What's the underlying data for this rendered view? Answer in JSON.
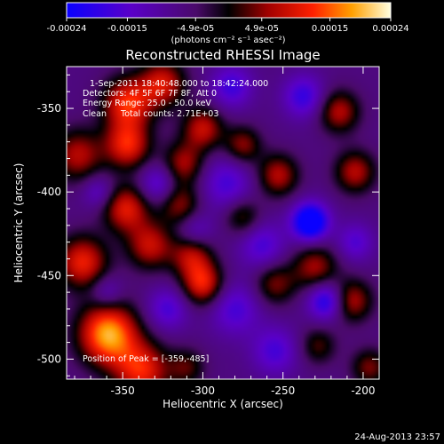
{
  "chart_data": {
    "type": "heatmap",
    "title": "Reconstructed RHESSI Image",
    "xlabel": "Heliocentric X (arcsec)",
    "ylabel": "Heliocentric Y (arcsec)",
    "xlim": [
      -385,
      -190
    ],
    "ylim": [
      -512,
      -325
    ],
    "x_ticks": [
      -350,
      -300,
      -250,
      -200
    ],
    "y_ticks": [
      -350,
      -400,
      -450,
      -500
    ],
    "colorbar": {
      "range": [
        -0.00024,
        0.00024
      ],
      "tick_values": [
        -0.00024,
        -0.00015,
        -4.9e-05,
        4.9e-05,
        0.00015,
        0.00024
      ],
      "tick_labels": [
        "-0.00024",
        "-0.00015",
        "-4.9e-05",
        "4.9e-05",
        "0.00015",
        "0.00024"
      ],
      "units_label": "(photons cm⁻² s⁻¹ asec⁻²)"
    },
    "annotations": {
      "time_range": "1-Sep-2011 18:40:48.000 to 18:42:24.000",
      "detectors": "Detectors: 4F 5F 6F 7F 8F, Att 0",
      "energy_range": "Energy Range: 25.0 - 50.0 keV",
      "clean": "Clean",
      "total_counts": "Total counts: 2.71E+03",
      "peak": "Position of Peak = [-359,-485]"
    },
    "peak": {
      "x": -359,
      "y": -485,
      "value": 0.00024
    },
    "minimum": {
      "x": -233,
      "y": -418,
      "value": -0.00024
    },
    "sources": [
      {
        "x": -359,
        "y": -485,
        "value": 0.00024,
        "width": 13
      },
      {
        "x": -338,
        "y": -507,
        "value": 0.00016,
        "width": 12
      },
      {
        "x": -375,
        "y": -442,
        "value": 0.00016,
        "width": 11
      },
      {
        "x": -348,
        "y": -410,
        "value": 0.00015,
        "width": 10
      },
      {
        "x": -333,
        "y": -432,
        "value": 0.00013,
        "width": 10
      },
      {
        "x": -378,
        "y": -378,
        "value": 0.00012,
        "width": 11
      },
      {
        "x": -347,
        "y": -347,
        "value": 0.00017,
        "width": 11
      },
      {
        "x": -347,
        "y": -372,
        "value": 0.00016,
        "width": 10
      },
      {
        "x": -325,
        "y": -335,
        "value": 0.00014,
        "width": 10
      },
      {
        "x": -300,
        "y": -455,
        "value": 0.00016,
        "width": 9
      },
      {
        "x": -307,
        "y": -438,
        "value": 0.00012,
        "width": 9
      },
      {
        "x": -314,
        "y": -408,
        "value": 0.0001,
        "width": 9
      },
      {
        "x": -312,
        "y": -383,
        "value": 0.00011,
        "width": 9
      },
      {
        "x": -300,
        "y": -362,
        "value": 0.00013,
        "width": 9
      },
      {
        "x": -253,
        "y": -390,
        "value": 0.00012,
        "width": 9
      },
      {
        "x": -275,
        "y": -372,
        "value": 0.0001,
        "width": 8
      },
      {
        "x": -215,
        "y": -352,
        "value": 0.00012,
        "width": 9
      },
      {
        "x": -205,
        "y": -388,
        "value": 0.00012,
        "width": 9
      },
      {
        "x": -230,
        "y": -445,
        "value": 0.00011,
        "width": 10
      },
      {
        "x": -207,
        "y": -465,
        "value": 0.00012,
        "width": 9
      },
      {
        "x": -255,
        "y": -455,
        "value": 9e-05,
        "width": 9
      },
      {
        "x": -275,
        "y": -415,
        "value": 8e-05,
        "width": 8
      },
      {
        "x": -196,
        "y": -505,
        "value": 9e-05,
        "width": 8
      },
      {
        "x": -228,
        "y": -492,
        "value": 7e-05,
        "width": 8
      },
      {
        "x": -310,
        "y": -505,
        "value": 7e-05,
        "width": 8
      },
      {
        "x": -233,
        "y": -418,
        "value": -0.00024,
        "width": 8
      },
      {
        "x": -237,
        "y": -343,
        "value": -0.00012,
        "width": 9
      },
      {
        "x": -223,
        "y": -465,
        "value": -0.00016,
        "width": 8
      },
      {
        "x": -285,
        "y": -395,
        "value": -0.0001,
        "width": 11
      },
      {
        "x": -263,
        "y": -432,
        "value": -0.0001,
        "width": 10
      },
      {
        "x": -280,
        "y": -470,
        "value": -0.0001,
        "width": 11
      },
      {
        "x": -282,
        "y": -337,
        "value": -0.00011,
        "width": 9
      },
      {
        "x": -322,
        "y": -470,
        "value": -0.0001,
        "width": 9
      },
      {
        "x": -255,
        "y": -495,
        "value": -0.0001,
        "width": 10
      },
      {
        "x": -328,
        "y": -395,
        "value": -0.0001,
        "width": 8
      },
      {
        "x": -360,
        "y": -460,
        "value": -8e-05,
        "width": 7
      },
      {
        "x": -365,
        "y": -400,
        "value": -8e-05,
        "width": 7
      },
      {
        "x": -305,
        "y": -423,
        "value": -8e-05,
        "width": 8
      },
      {
        "x": -205,
        "y": -430,
        "value": -9e-05,
        "width": 8
      }
    ]
  },
  "footer": {
    "date": "24-Aug-2013 23:57"
  }
}
